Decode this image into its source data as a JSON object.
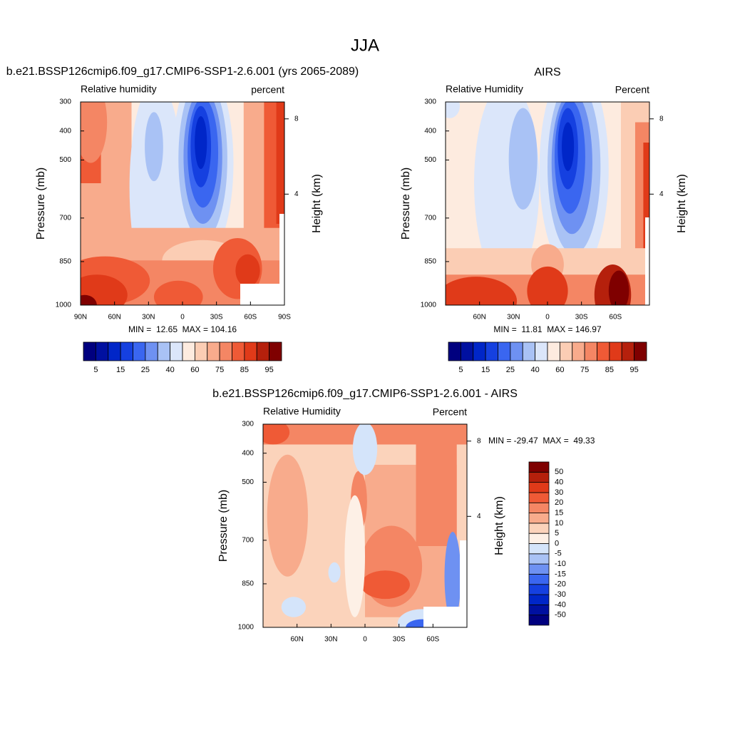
{
  "title": "JJA",
  "chart_data": [
    {
      "type": "contour",
      "title": "b.e21.BSSP126cmip6.f09_g17.CMIP6-SSP1-2.6.001 (yrs 2065-2089)",
      "left_label": "Relative humidity",
      "right_label": "percent",
      "ylabel": "Pressure (mb)",
      "y2label": "Height (km)",
      "annotation": "MIN =  12.65  MAX = 104.16",
      "xlim": [
        90,
        -90
      ],
      "xticks": [
        {
          "value": 90,
          "label": "90N"
        },
        {
          "value": 60,
          "label": "60N"
        },
        {
          "value": 30,
          "label": "30N"
        },
        0,
        {
          "value": -30,
          "label": "30S"
        },
        {
          "value": -60,
          "label": "60S"
        },
        {
          "value": -90,
          "label": "90S"
        }
      ],
      "ylim": [
        1000,
        300
      ],
      "yticks": [
        300,
        400,
        500,
        700,
        850,
        1000
      ],
      "y2lim": [
        -1.9,
        8.9
      ],
      "y2ticks": [
        8,
        4
      ],
      "colorbar": {
        "orientation": "horizontal",
        "levels": [
          5,
          null,
          15,
          null,
          25,
          null,
          40,
          null,
          60,
          null,
          75,
          null,
          85,
          null,
          95
        ],
        "colors": [
          "#00007f",
          "#0010a0",
          "#0026c8",
          "#1540e0",
          "#3a66f0",
          "#6e91f2",
          "#a9c2f5",
          "#dbe6fa",
          "#fdebdf",
          "#fbcdb4",
          "#f8ab8c",
          "#f48664",
          "#ef5a36",
          "#e03a19",
          "#b5200c",
          "#7f0000"
        ]
      }
    },
    {
      "type": "contour",
      "title": "AIRS",
      "left_label": "Relative Humidity",
      "right_label": "Percent",
      "ylabel": "Pressure (mb)",
      "y2label": "Height (km)",
      "annotation": "MIN =  11.81  MAX = 146.97",
      "xlim": [
        90,
        -90
      ],
      "xticks": [
        {
          "value": 60,
          "label": "60N"
        },
        {
          "value": 30,
          "label": "30N"
        },
        0,
        {
          "value": -30,
          "label": "30S"
        },
        {
          "value": -60,
          "label": "60S"
        }
      ],
      "ylim": [
        1000,
        300
      ],
      "yticks": [
        300,
        400,
        500,
        700,
        850,
        1000
      ],
      "y2lim": [
        -1.9,
        8.9
      ],
      "y2ticks": [
        8,
        4
      ],
      "colorbar": {
        "orientation": "horizontal",
        "levels": [
          5,
          null,
          15,
          null,
          25,
          null,
          40,
          null,
          60,
          null,
          75,
          null,
          85,
          null,
          95
        ],
        "colors": [
          "#00007f",
          "#0010a0",
          "#0026c8",
          "#1540e0",
          "#3a66f0",
          "#6e91f2",
          "#a9c2f5",
          "#dbe6fa",
          "#fdebdf",
          "#fbcdb4",
          "#f8ab8c",
          "#f48664",
          "#ef5a36",
          "#e03a19",
          "#b5200c",
          "#7f0000"
        ]
      }
    },
    {
      "type": "contour",
      "title": "b.e21.BSSP126cmip6.f09_g17.CMIP6-SSP1-2.6.001 - AIRS",
      "left_label": "Relative Humidity",
      "right_label": "Percent",
      "ylabel": "Pressure (mb)",
      "y2label": "Height (km)",
      "annotation": "MIN = -29.47  MAX =  49.33",
      "xlim": [
        90,
        -90
      ],
      "xticks": [
        {
          "value": 60,
          "label": "60N"
        },
        {
          "value": 30,
          "label": "30N"
        },
        0,
        {
          "value": -30,
          "label": "30S"
        },
        {
          "value": -60,
          "label": "60S"
        }
      ],
      "ylim": [
        1000,
        300
      ],
      "yticks": [
        300,
        400,
        500,
        700,
        850,
        1000
      ],
      "y2lim": [
        -1.9,
        8.9
      ],
      "y2ticks": [
        8,
        4
      ],
      "colorbar": {
        "orientation": "vertical",
        "levels": [
          -50,
          -40,
          -30,
          -20,
          -15,
          -10,
          -5,
          0,
          5,
          10,
          15,
          20,
          30,
          40,
          50
        ],
        "colors": [
          "#00007f",
          "#0010a0",
          "#0026c8",
          "#1540e0",
          "#3a66f0",
          "#6e91f2",
          "#a9c2f5",
          "#d4e4fa",
          "#fdf0e6",
          "#fbd3bb",
          "#f8ab8c",
          "#f48664",
          "#ef5a36",
          "#e03a19",
          "#b5200c",
          "#7f0000"
        ]
      }
    }
  ]
}
